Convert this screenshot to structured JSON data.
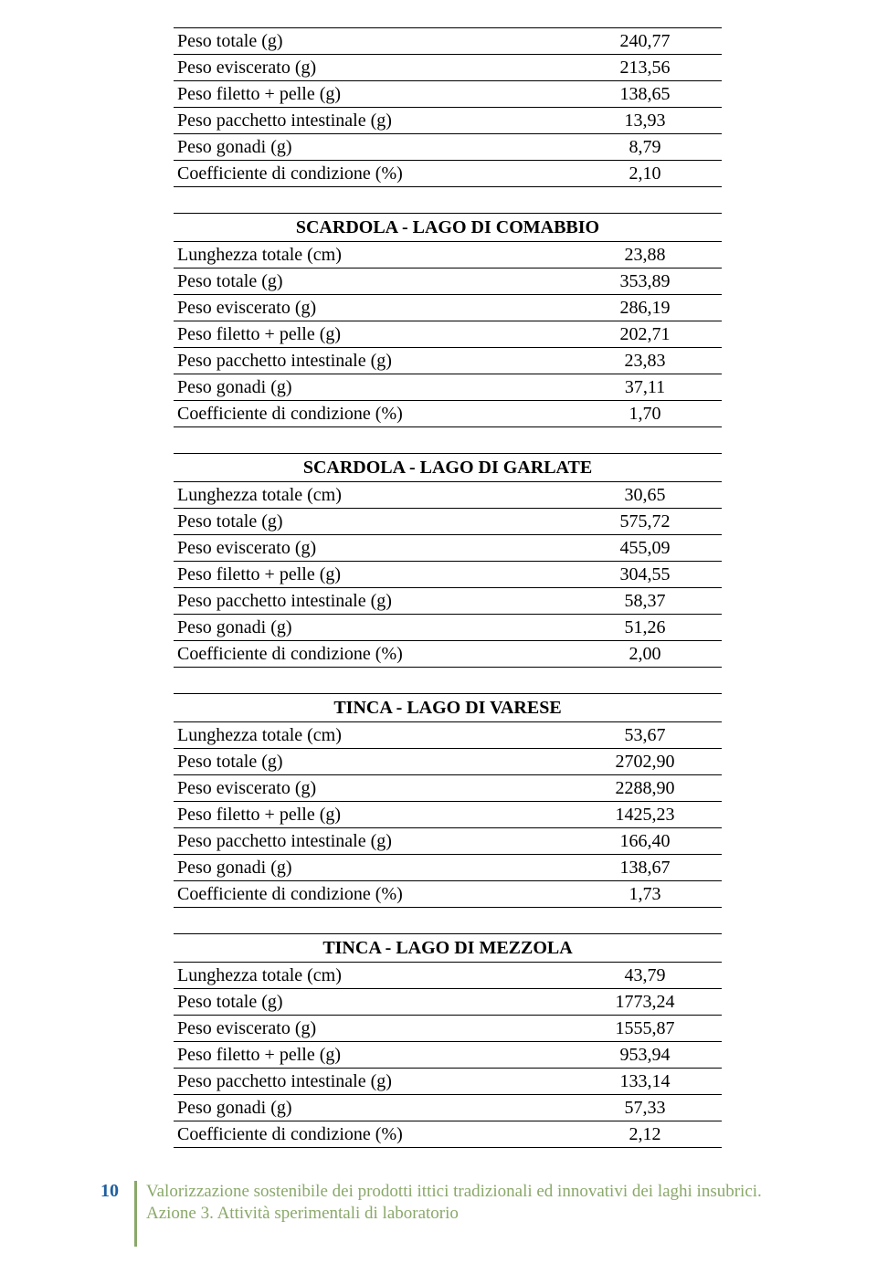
{
  "label_fontsize": 20,
  "title_fontsize": 20,
  "row_border_color": "#000000",
  "background_color": "#ffffff",
  "text_color": "#000000",
  "tables": [
    {
      "title": null,
      "rows": [
        {
          "label": "Peso totale (g)",
          "value": "240,77"
        },
        {
          "label": "Peso eviscerato (g)",
          "value": "213,56"
        },
        {
          "label": "Peso filetto + pelle (g)",
          "value": "138,65"
        },
        {
          "label": "Peso pacchetto intestinale (g)",
          "value": "13,93"
        },
        {
          "label": "Peso gonadi (g)",
          "value": "8,79"
        },
        {
          "label": "Coefficiente di condizione (%)",
          "value": "2,10"
        }
      ]
    },
    {
      "title": "SCARDOLA - LAGO DI COMABBIO",
      "rows": [
        {
          "label": "Lunghezza totale (cm)",
          "value": "23,88"
        },
        {
          "label": "Peso totale (g)",
          "value": "353,89"
        },
        {
          "label": "Peso eviscerato (g)",
          "value": "286,19"
        },
        {
          "label": "Peso filetto + pelle (g)",
          "value": "202,71"
        },
        {
          "label": "Peso pacchetto intestinale (g)",
          "value": "23,83"
        },
        {
          "label": "Peso gonadi (g)",
          "value": "37,11"
        },
        {
          "label": "Coefficiente di condizione (%)",
          "value": "1,70"
        }
      ]
    },
    {
      "title": "SCARDOLA - LAGO DI GARLATE",
      "rows": [
        {
          "label": "Lunghezza totale (cm)",
          "value": "30,65"
        },
        {
          "label": "Peso totale (g)",
          "value": "575,72"
        },
        {
          "label": "Peso eviscerato (g)",
          "value": "455,09"
        },
        {
          "label": "Peso filetto + pelle (g)",
          "value": "304,55"
        },
        {
          "label": "Peso pacchetto intestinale (g)",
          "value": "58,37"
        },
        {
          "label": "Peso gonadi (g)",
          "value": "51,26"
        },
        {
          "label": "Coefficiente di condizione (%)",
          "value": "2,00"
        }
      ]
    },
    {
      "title": "TINCA - LAGO DI VARESE",
      "rows": [
        {
          "label": "Lunghezza totale (cm)",
          "value": "53,67"
        },
        {
          "label": "Peso totale (g)",
          "value": "2702,90"
        },
        {
          "label": "Peso eviscerato (g)",
          "value": "2288,90"
        },
        {
          "label": "Peso filetto + pelle (g)",
          "value": "1425,23"
        },
        {
          "label": "Peso pacchetto intestinale (g)",
          "value": "166,40"
        },
        {
          "label": "Peso gonadi (g)",
          "value": "138,67"
        },
        {
          "label": "Coefficiente di condizione (%)",
          "value": "1,73"
        }
      ]
    },
    {
      "title": "TINCA - LAGO DI MEZZOLA",
      "rows": [
        {
          "label": "Lunghezza totale (cm)",
          "value": "43,79"
        },
        {
          "label": "Peso totale (g)",
          "value": "1773,24"
        },
        {
          "label": "Peso eviscerato (g)",
          "value": "1555,87"
        },
        {
          "label": "Peso filetto + pelle (g)",
          "value": "953,94"
        },
        {
          "label": "Peso pacchetto intestinale (g)",
          "value": "133,14"
        },
        {
          "label": "Peso gonadi (g)",
          "value": "57,33"
        },
        {
          "label": "Coefficiente di condizione (%)",
          "value": "2,12"
        }
      ]
    }
  ],
  "footer": {
    "page_number": "10",
    "line1": "Valorizzazione sostenibile dei prodotti ittici tradizionali ed innovativi dei laghi insubrici.",
    "line2": "Azione 3. Attività sperimentali di laboratorio",
    "page_color": "#1f609f",
    "border_color": "#8aa869",
    "text_color": "#8aa869"
  }
}
